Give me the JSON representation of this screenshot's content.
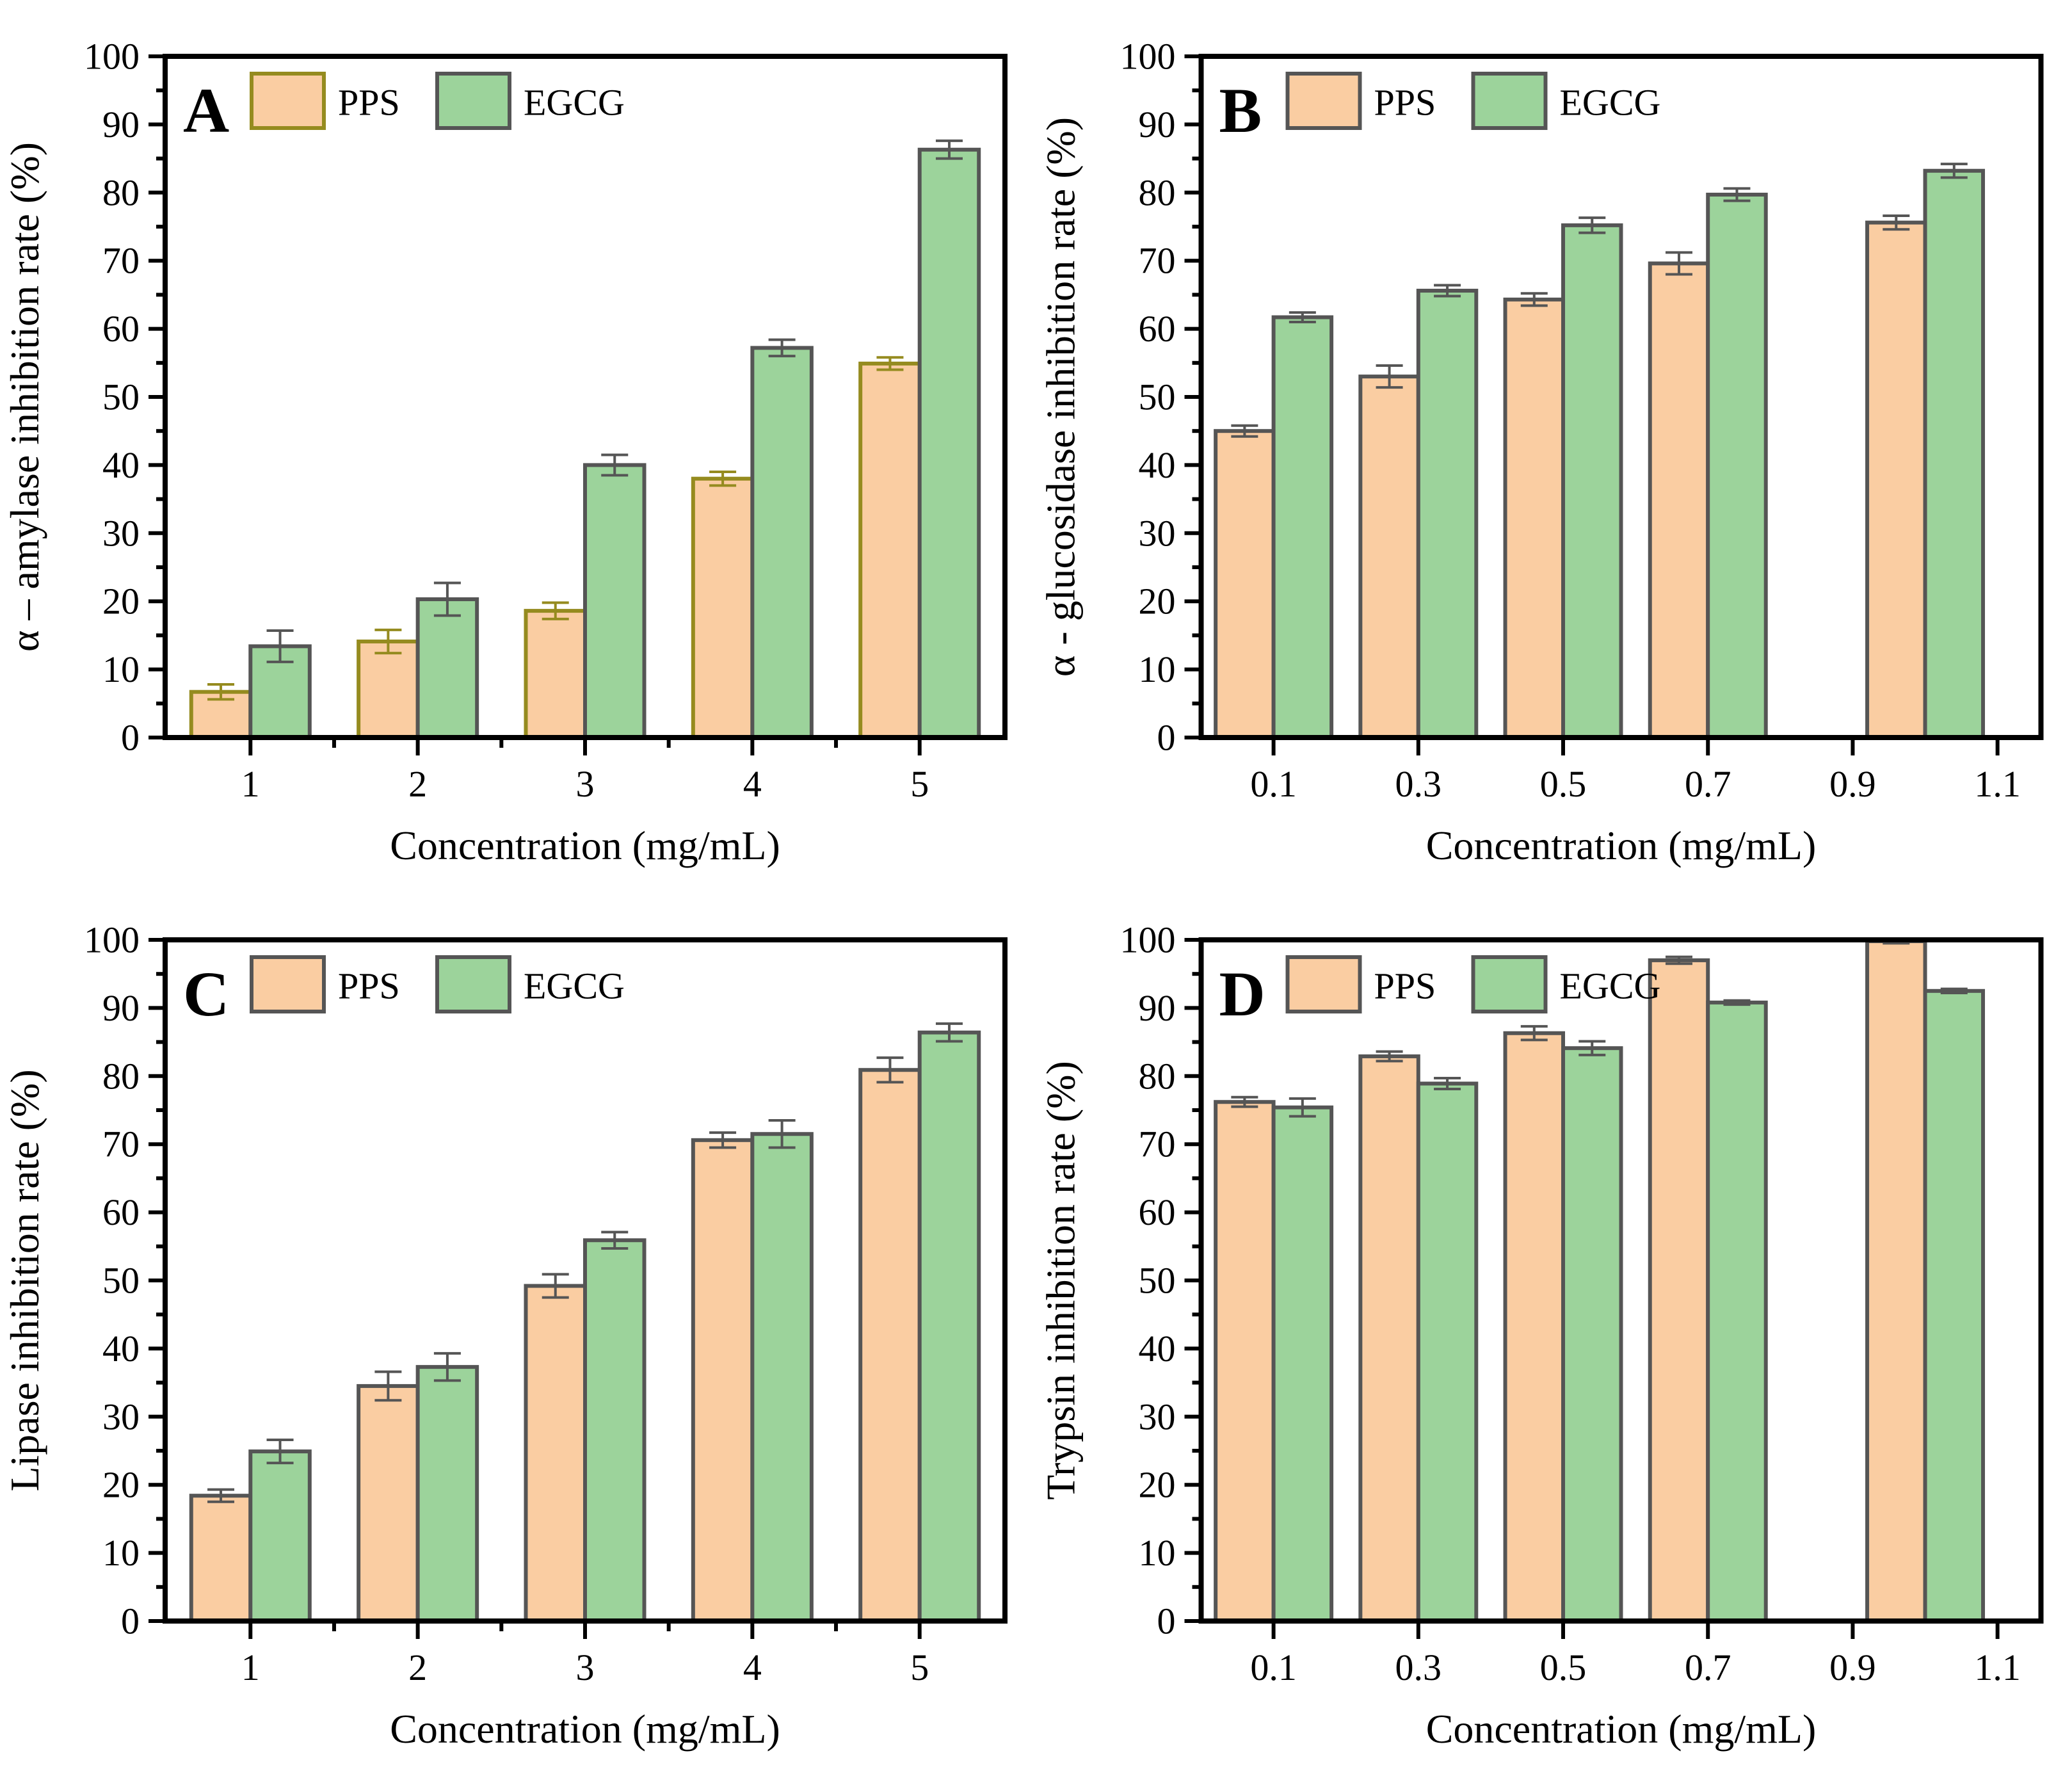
{
  "figure": {
    "background": "#ffffff",
    "legend_labels": [
      "PPS",
      "EGCG"
    ],
    "xlabel": "Concentration (mg/mL)"
  },
  "colors": {
    "pps_fill": "#FACDA2",
    "egcg_fill": "#9CD39B",
    "dark_gray_border": "#555555",
    "olive_border": "#958B1F",
    "axis_black": "#000000"
  },
  "chart_data": [
    {
      "panel": "A",
      "type": "bar",
      "title": "",
      "ylabel": "α – amylase inhibition rate (%)",
      "xlabel": "Concentration (mg/mL)",
      "ylim": [
        0,
        100
      ],
      "yticks": [
        0,
        10,
        20,
        30,
        40,
        50,
        60,
        70,
        80,
        90,
        100
      ],
      "ytick_minor_step": 5,
      "xlim": [
        0.49,
        5.51
      ],
      "xticks": [
        "1",
        "2",
        "3",
        "4",
        "5"
      ],
      "xtick_pos": [
        1,
        2,
        3,
        4,
        5
      ],
      "xminor_pos": [
        1.5,
        2.5,
        3.5,
        4.5
      ],
      "categories": [
        1,
        2,
        3,
        4,
        5
      ],
      "bar_width": 0.354,
      "legend": [
        "PPS",
        "EGCG"
      ],
      "series": [
        {
          "name": "PPS",
          "fill": "#FACDA2",
          "stroke": "#958B1F",
          "values": [
            6.7,
            14.1,
            18.6,
            38.0,
            54.9
          ],
          "errors": [
            1.1,
            1.7,
            1.2,
            1.0,
            0.9
          ]
        },
        {
          "name": "EGCG",
          "fill": "#9CD39B",
          "stroke": "#555555",
          "values": [
            13.4,
            20.3,
            40.0,
            57.2,
            86.3
          ],
          "errors": [
            2.3,
            2.4,
            1.5,
            1.2,
            1.3
          ]
        }
      ]
    },
    {
      "panel": "B",
      "type": "bar",
      "title": "",
      "ylabel": "α - glucosidase inhibition rate (%)",
      "xlabel": "Concentration (mg/mL)",
      "ylim": [
        0,
        100
      ],
      "yticks": [
        0,
        10,
        20,
        30,
        40,
        50,
        60,
        70,
        80,
        90,
        100
      ],
      "ytick_minor_step": 5,
      "xlim": [
        0,
        1.16
      ],
      "xticks": [
        "0.1",
        "0.3",
        "0.5",
        "0.7",
        "0.9",
        "1.1"
      ],
      "xtick_pos": [
        0.1,
        0.3,
        0.5,
        0.7,
        0.9,
        1.1
      ],
      "xminor_pos": [],
      "categories": [
        0.1,
        0.3,
        0.5,
        0.7,
        1.0
      ],
      "bar_width": 0.08,
      "legend": [
        "PPS",
        "EGCG"
      ],
      "series": [
        {
          "name": "PPS",
          "fill": "#FACDA2",
          "stroke": "#555555",
          "values": [
            45.0,
            53.0,
            64.3,
            69.6,
            75.6
          ],
          "errors": [
            0.8,
            1.6,
            0.9,
            1.6,
            1.0
          ]
        },
        {
          "name": "EGCG",
          "fill": "#9CD39B",
          "stroke": "#555555",
          "values": [
            61.7,
            65.6,
            75.2,
            79.7,
            83.2
          ],
          "errors": [
            0.7,
            0.8,
            1.1,
            0.9,
            1.0
          ]
        }
      ]
    },
    {
      "panel": "C",
      "type": "bar",
      "title": "",
      "ylabel": "Lipase inhibition rate (%)",
      "xlabel": "Concentration (mg/mL)",
      "ylim": [
        0,
        100
      ],
      "yticks": [
        0,
        10,
        20,
        30,
        40,
        50,
        60,
        70,
        80,
        90,
        100
      ],
      "ytick_minor_step": 5,
      "xlim": [
        0.49,
        5.51
      ],
      "xticks": [
        "1",
        "2",
        "3",
        "4",
        "5"
      ],
      "xtick_pos": [
        1,
        2,
        3,
        4,
        5
      ],
      "xminor_pos": [
        1.5,
        2.5,
        3.5,
        4.5
      ],
      "categories": [
        1,
        2,
        3,
        4,
        5
      ],
      "bar_width": 0.354,
      "legend": [
        "PPS",
        "EGCG"
      ],
      "series": [
        {
          "name": "PPS",
          "fill": "#FACDA2",
          "stroke": "#555555",
          "values": [
            18.4,
            34.5,
            49.2,
            70.6,
            80.9
          ],
          "errors": [
            0.9,
            2.1,
            1.7,
            1.1,
            1.8
          ]
        },
        {
          "name": "EGCG",
          "fill": "#9CD39B",
          "stroke": "#555555",
          "values": [
            24.9,
            37.3,
            55.9,
            71.5,
            86.4
          ],
          "errors": [
            1.7,
            2.0,
            1.2,
            2.0,
            1.3
          ]
        }
      ]
    },
    {
      "panel": "D",
      "type": "bar",
      "title": "",
      "ylabel": "Trypsin inhibition rate (%)",
      "xlabel": "Concentration (mg/mL)",
      "ylim": [
        0,
        100
      ],
      "yticks": [
        0,
        10,
        20,
        30,
        40,
        50,
        60,
        70,
        80,
        90,
        100
      ],
      "ytick_minor_step": 5,
      "xlim": [
        0,
        1.16
      ],
      "xticks": [
        "0.1",
        "0.3",
        "0.5",
        "0.7",
        "0.9",
        "1.1"
      ],
      "xtick_pos": [
        0.1,
        0.3,
        0.5,
        0.7,
        0.9,
        1.1
      ],
      "xminor_pos": [],
      "categories": [
        0.1,
        0.3,
        0.5,
        0.7,
        1.0
      ],
      "bar_width": 0.08,
      "legend": [
        "PPS",
        "EGCG"
      ],
      "series": [
        {
          "name": "PPS",
          "fill": "#FACDA2",
          "stroke": "#555555",
          "values": [
            76.2,
            82.9,
            86.3,
            97.0,
            99.8
          ],
          "errors": [
            0.7,
            0.7,
            1.0,
            0.5,
            0.3
          ]
        },
        {
          "name": "EGCG",
          "fill": "#9CD39B",
          "stroke": "#555555",
          "values": [
            75.4,
            78.9,
            84.1,
            90.8,
            92.5
          ],
          "errors": [
            1.3,
            0.8,
            1.0,
            0.3,
            0.3
          ]
        }
      ]
    }
  ]
}
